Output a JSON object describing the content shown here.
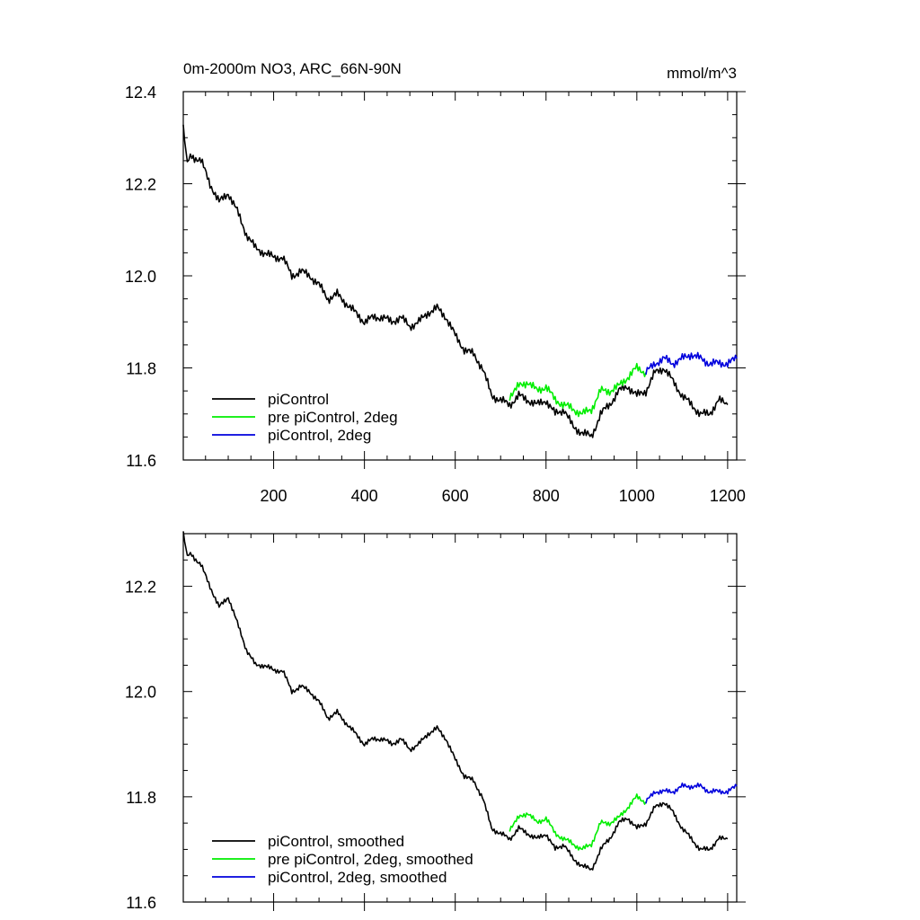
{
  "chart_data": [
    {
      "type": "line",
      "title": "0m-2000m NO3, ARC_66N-90N",
      "units": "mmol/m^3",
      "xlim": [
        1,
        1220
      ],
      "ylim": [
        11.6,
        12.4
      ],
      "xticks": [
        200,
        400,
        600,
        800,
        1000,
        1200
      ],
      "yticks": [
        11.6,
        11.8,
        12.0,
        12.2,
        12.4
      ],
      "xtick_labels": [
        "200",
        "400",
        "600",
        "800",
        "1000",
        "1200"
      ],
      "ytick_labels": [
        "11.6",
        "11.8",
        "12.0",
        "12.2",
        "12.4"
      ],
      "legend_position": "bottom-left",
      "series": [
        {
          "name": "piControl",
          "color": "#000000",
          "x": [
            1,
            10,
            20,
            40,
            60,
            80,
            100,
            120,
            140,
            160,
            180,
            200,
            220,
            240,
            260,
            280,
            300,
            320,
            340,
            360,
            380,
            400,
            420,
            440,
            460,
            480,
            500,
            520,
            540,
            560,
            580,
            600,
            620,
            640,
            660,
            680,
            700,
            720,
            740,
            760,
            780,
            800,
            820,
            840,
            860,
            880,
            900,
            920,
            940,
            960,
            980,
            1000,
            1020,
            1040,
            1060,
            1080,
            1100,
            1120,
            1140,
            1160,
            1180,
            1200
          ],
          "y": [
            12.32,
            12.25,
            12.26,
            12.25,
            12.2,
            12.16,
            12.18,
            12.14,
            12.09,
            12.06,
            12.05,
            12.04,
            12.04,
            12.0,
            12.01,
            12.0,
            11.98,
            11.95,
            11.96,
            11.94,
            11.92,
            11.9,
            11.91,
            11.91,
            11.9,
            11.91,
            11.89,
            11.9,
            11.92,
            11.93,
            11.91,
            11.87,
            11.84,
            11.83,
            11.8,
            11.74,
            11.73,
            11.72,
            11.74,
            11.73,
            11.72,
            11.73,
            11.7,
            11.71,
            11.67,
            11.66,
            11.65,
            11.7,
            11.72,
            11.75,
            11.76,
            11.74,
            11.75,
            11.79,
            11.8,
            11.77,
            11.74,
            11.72,
            11.7,
            11.7,
            11.73,
            11.72
          ]
        },
        {
          "name": "pre piControl, 2deg",
          "color": "#00ee00",
          "x": [
            720,
            740,
            760,
            780,
            800,
            820,
            840,
            860,
            880,
            900,
            920,
            940,
            960,
            980,
            1000,
            1020
          ],
          "y": [
            11.74,
            11.76,
            11.77,
            11.75,
            11.76,
            11.73,
            11.72,
            11.71,
            11.7,
            11.71,
            11.75,
            11.75,
            11.76,
            11.78,
            11.8,
            11.79
          ]
        },
        {
          "name": "piControl, 2deg",
          "color": "#0000dd",
          "x": [
            1020,
            1040,
            1060,
            1080,
            1100,
            1120,
            1140,
            1160,
            1180,
            1200,
            1220
          ],
          "y": [
            11.79,
            11.81,
            11.82,
            11.81,
            11.82,
            11.83,
            11.82,
            11.81,
            11.81,
            11.81,
            11.82
          ]
        }
      ]
    },
    {
      "type": "line",
      "title": "",
      "units": "",
      "xlim": [
        1,
        1220
      ],
      "ylim": [
        11.6,
        12.3
      ],
      "xticks": [
        200,
        400,
        600,
        800,
        1000,
        1200
      ],
      "yticks": [
        11.6,
        11.8,
        12.0,
        12.2
      ],
      "xtick_labels": [],
      "ytick_labels": [
        "11.6",
        "11.8",
        "12.0",
        "12.2"
      ],
      "legend_position": "bottom-left",
      "series": [
        {
          "name": "piControl, smoothed",
          "color": "#000000",
          "x": [
            1,
            10,
            20,
            40,
            60,
            80,
            100,
            120,
            140,
            160,
            180,
            200,
            220,
            240,
            260,
            280,
            300,
            320,
            340,
            360,
            380,
            400,
            420,
            440,
            460,
            480,
            500,
            520,
            540,
            560,
            580,
            600,
            620,
            640,
            660,
            680,
            700,
            720,
            740,
            760,
            780,
            800,
            820,
            840,
            860,
            880,
            900,
            920,
            940,
            960,
            980,
            1000,
            1020,
            1040,
            1060,
            1080,
            1100,
            1120,
            1140,
            1160,
            1180,
            1200
          ],
          "y": [
            12.3,
            12.26,
            12.26,
            12.24,
            12.2,
            12.16,
            12.18,
            12.13,
            12.08,
            12.05,
            12.05,
            12.04,
            12.04,
            12.0,
            12.01,
            12.0,
            11.98,
            11.95,
            11.96,
            11.94,
            11.92,
            11.9,
            11.91,
            11.91,
            11.9,
            11.91,
            11.89,
            11.9,
            11.92,
            11.93,
            11.91,
            11.87,
            11.84,
            11.83,
            11.8,
            11.74,
            11.73,
            11.72,
            11.74,
            11.73,
            11.72,
            11.73,
            11.7,
            11.71,
            11.68,
            11.67,
            11.66,
            11.7,
            11.72,
            11.75,
            11.76,
            11.74,
            11.75,
            11.78,
            11.79,
            11.77,
            11.74,
            11.72,
            11.7,
            11.7,
            11.72,
            11.72
          ]
        },
        {
          "name": "pre piControl, 2deg, smoothed",
          "color": "#00ee00",
          "x": [
            720,
            740,
            760,
            780,
            800,
            820,
            840,
            860,
            880,
            900,
            920,
            940,
            960,
            980,
            1000,
            1020
          ],
          "y": [
            11.74,
            11.76,
            11.77,
            11.75,
            11.76,
            11.73,
            11.72,
            11.71,
            11.7,
            11.71,
            11.75,
            11.75,
            11.76,
            11.78,
            11.8,
            11.79
          ]
        },
        {
          "name": "piControl, 2deg, smoothed",
          "color": "#0000dd",
          "x": [
            1020,
            1040,
            1060,
            1080,
            1100,
            1120,
            1140,
            1160,
            1180,
            1200,
            1220
          ],
          "y": [
            11.79,
            11.81,
            11.81,
            11.81,
            11.82,
            11.82,
            11.82,
            11.81,
            11.81,
            11.81,
            11.82
          ]
        }
      ]
    }
  ]
}
